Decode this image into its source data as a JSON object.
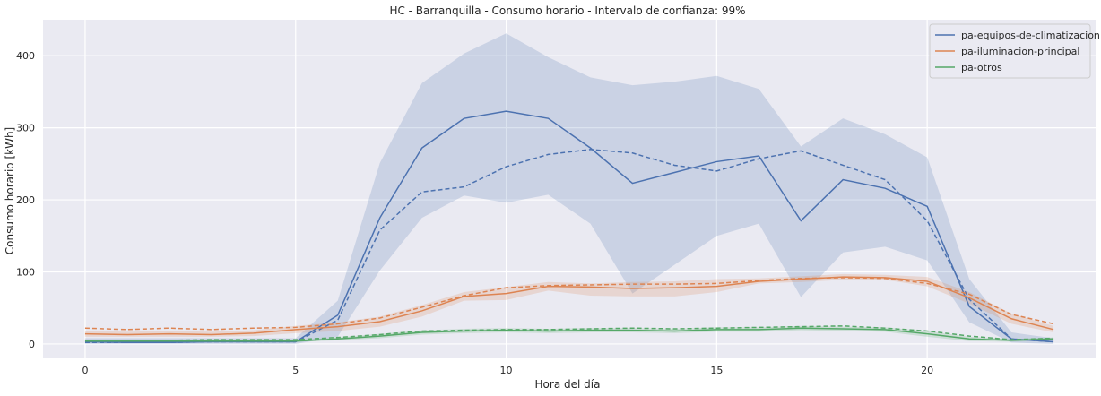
{
  "chart_data": {
    "type": "line",
    "title": "HC - Barranquilla - Consumo horario - Intervalo de confianza: 99%",
    "xlabel": "Hora del día",
    "ylabel": "Consumo horario [kWh]",
    "xlim": [
      -1,
      24
    ],
    "ylim": [
      -20,
      450
    ],
    "xticks": [
      0,
      5,
      10,
      15,
      20
    ],
    "yticks": [
      0,
      100,
      200,
      300,
      400
    ],
    "grid": true,
    "legend_position": "top-right",
    "x": [
      0,
      1,
      2,
      3,
      4,
      5,
      6,
      7,
      8,
      9,
      10,
      11,
      12,
      13,
      14,
      15,
      16,
      17,
      18,
      19,
      20,
      21,
      22,
      23
    ],
    "series": [
      {
        "name": "pa-equipos-de-climatizacion",
        "color": "#4c72b0",
        "mean": [
          3,
          2,
          2,
          3,
          3,
          3,
          40,
          175,
          272,
          313,
          323,
          313,
          272,
          223,
          238,
          253,
          261,
          171,
          228,
          216,
          191,
          52,
          7,
          3
        ],
        "median": [
          2,
          2,
          2,
          3,
          3,
          3,
          33,
          158,
          211,
          218,
          246,
          263,
          270,
          265,
          248,
          240,
          257,
          268,
          248,
          228,
          171,
          62,
          7,
          3
        ],
        "ci_lower": [
          0,
          0,
          0,
          0,
          0,
          0,
          10,
          102,
          175,
          206,
          196,
          207,
          167,
          70,
          110,
          150,
          167,
          65,
          127,
          135,
          116,
          30,
          2,
          0
        ],
        "ci_upper": [
          8,
          8,
          8,
          8,
          8,
          8,
          60,
          251,
          362,
          403,
          431,
          398,
          370,
          359,
          364,
          372,
          354,
          274,
          313,
          291,
          259,
          90,
          16,
          8
        ]
      },
      {
        "name": "pa-iluminacion-principal",
        "color": "#dd8452",
        "mean": [
          14,
          13,
          14,
          13,
          15,
          20,
          24,
          31,
          46,
          66,
          70,
          80,
          79,
          77,
          78,
          80,
          87,
          90,
          93,
          92,
          87,
          64,
          35,
          20
        ],
        "median": [
          22,
          20,
          22,
          20,
          22,
          23,
          28,
          36,
          51,
          67,
          78,
          81,
          82,
          83,
          83,
          84,
          88,
          91,
          92,
          91,
          84,
          69,
          41,
          28
        ],
        "ci_lower": [
          10,
          10,
          10,
          10,
          11,
          15,
          18,
          24,
          38,
          60,
          61,
          74,
          67,
          66,
          66,
          72,
          84,
          86,
          89,
          89,
          80,
          56,
          28,
          16
        ],
        "ci_upper": [
          18,
          17,
          18,
          17,
          19,
          25,
          30,
          38,
          54,
          72,
          79,
          86,
          84,
          86,
          87,
          90,
          91,
          94,
          97,
          96,
          93,
          72,
          42,
          25
        ]
      },
      {
        "name": "pa-otros",
        "color": "#55a868",
        "mean": [
          4,
          4,
          4,
          4,
          4,
          4,
          7,
          11,
          16,
          18,
          19,
          18,
          19,
          19,
          18,
          20,
          20,
          22,
          21,
          20,
          14,
          7,
          5,
          7
        ],
        "median": [
          5,
          5,
          5,
          6,
          6,
          6,
          9,
          13,
          18,
          19,
          20,
          20,
          21,
          22,
          21,
          22,
          23,
          24,
          25,
          22,
          18,
          11,
          6,
          8
        ],
        "ci_lower": [
          3,
          3,
          3,
          3,
          3,
          3,
          5,
          8,
          13,
          15,
          16,
          15,
          16,
          16,
          15,
          17,
          17,
          19,
          18,
          17,
          10,
          4,
          3,
          5
        ],
        "ci_upper": [
          6,
          6,
          6,
          6,
          6,
          6,
          9,
          14,
          19,
          21,
          22,
          21,
          22,
          22,
          21,
          23,
          23,
          25,
          24,
          23,
          18,
          10,
          7,
          9
        ]
      }
    ]
  }
}
